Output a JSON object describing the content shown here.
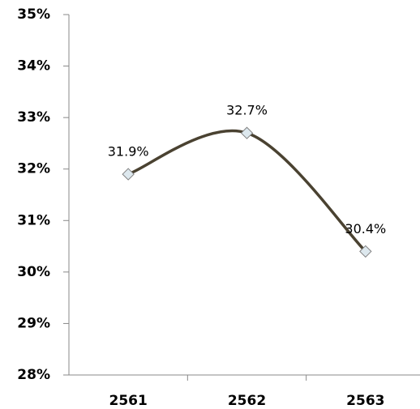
{
  "chart_data": {
    "type": "line",
    "categories": [
      "2561",
      "2562",
      "2563"
    ],
    "values": [
      31.9,
      32.7,
      30.4
    ],
    "value_labels": [
      "31.9%",
      "32.7%",
      "30.4%"
    ],
    "color": "#4a4231",
    "marker_color": "#dde8ee",
    "smooth": true,
    "ylim": [
      28,
      35
    ],
    "yticks": [
      {
        "value": 28,
        "label": "28%"
      },
      {
        "value": 29,
        "label": "29%"
      },
      {
        "value": 30,
        "label": "30%"
      },
      {
        "value": 31,
        "label": "31%"
      },
      {
        "value": 32,
        "label": "32%"
      },
      {
        "value": 33,
        "label": "33%"
      },
      {
        "value": 34,
        "label": "34%"
      },
      {
        "value": 35,
        "label": "35%"
      }
    ],
    "grid": false
  }
}
